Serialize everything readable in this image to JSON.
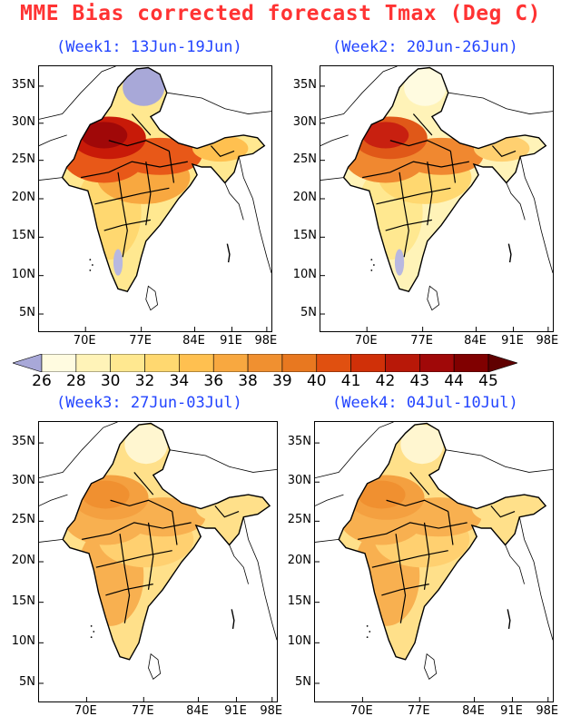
{
  "title": "MME Bias corrected forecast Tmax (Deg C)",
  "panels": [
    {
      "label": "(Week1: 13Jun-19Jun)",
      "variant": "hot",
      "kashmir_cold": true,
      "peninsula_cold": true
    },
    {
      "label": "(Week2: 20Jun-26Jun)",
      "variant": "warm",
      "kashmir_cold": false,
      "peninsula_cold": true
    },
    {
      "label": "(Week3: 27Jun-03Jul)",
      "variant": "mild",
      "kashmir_cold": false,
      "peninsula_cold": false
    },
    {
      "label": "(Week4: 04Jul-10Jul)",
      "variant": "mild",
      "kashmir_cold": false,
      "peninsula_cold": false
    }
  ],
  "y_ticks": [
    "35N",
    "30N",
    "25N",
    "20N",
    "15N",
    "10N",
    "5N"
  ],
  "x_ticks": [
    "70E",
    "77E",
    "84E",
    "91E",
    "98E"
  ],
  "colorbar": {
    "labels": [
      "26",
      "28",
      "30",
      "32",
      "34",
      "36",
      "38",
      "39",
      "40",
      "41",
      "42",
      "43",
      "44",
      "45"
    ],
    "colors": [
      "#a8a8d8",
      "#fffbe0",
      "#fff3b8",
      "#ffe890",
      "#ffd870",
      "#ffc050",
      "#f8a840",
      "#f09030",
      "#e87820",
      "#e05010",
      "#d03008",
      "#b81808",
      "#a00808",
      "#800000",
      "#600000"
    ]
  }
}
